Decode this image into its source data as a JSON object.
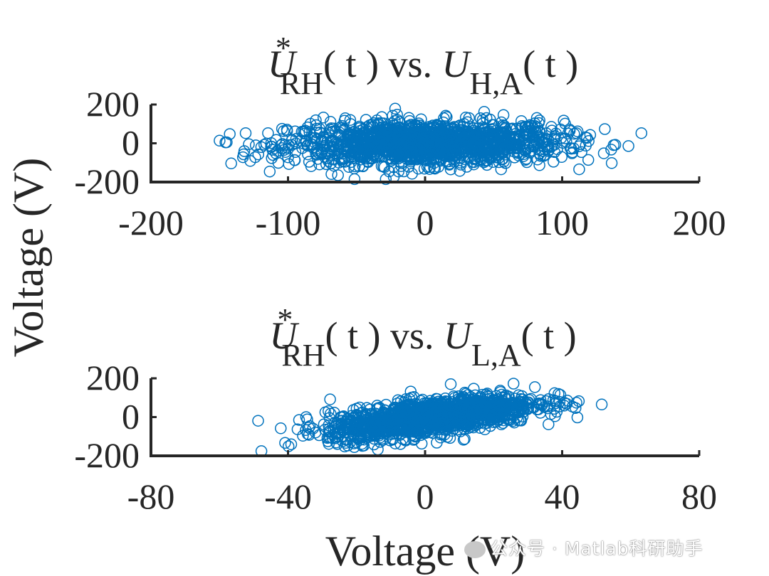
{
  "colors": {
    "marker": "#0072BD",
    "axis": "#262626"
  },
  "chart_data": [
    {
      "type": "scatter",
      "title": {
        "base": "U",
        "sup": "*",
        "sub": "RH",
        "arg": "( t ) vs. ",
        "base2": "U",
        "sub2": "H,A",
        "arg2": "( t )"
      },
      "xlabel": "",
      "ylabel": "Voltage (V)",
      "xlim": [
        -200,
        200
      ],
      "ylim": [
        -200,
        200
      ],
      "xticks": [
        "-200",
        "-100",
        "0",
        "100",
        "200"
      ],
      "yticks": [
        "200",
        "0",
        "-200"
      ],
      "marker": "open-circle",
      "series": [
        {
          "n_points": 1500,
          "x_center": 0,
          "x_std": 50,
          "y_center": 0,
          "y_std": 55,
          "correlation": 0.05,
          "x_min": -150,
          "x_max": 168
        }
      ]
    },
    {
      "type": "scatter",
      "title": {
        "base": "U",
        "sup": "*",
        "sub": "RH",
        "arg": "( t ) vs. ",
        "base2": "U",
        "sub2": "L,A",
        "arg2": "( t )"
      },
      "xlabel": "Voltage (V)",
      "ylabel": "",
      "xlim": [
        -80,
        80
      ],
      "ylim": [
        -200,
        200
      ],
      "xticks": [
        "-80",
        "-40",
        "0",
        "40",
        "80"
      ],
      "yticks": [
        "200",
        "0",
        "-200"
      ],
      "marker": "open-circle",
      "series": [
        {
          "n_points": 1500,
          "x_center": 2,
          "x_std": 15,
          "y_center": 0,
          "y_std": 55,
          "correlation": 0.6,
          "x_min": -50,
          "x_max": 53
        }
      ]
    }
  ],
  "watermark": "公众号 · Matlab科研助手"
}
